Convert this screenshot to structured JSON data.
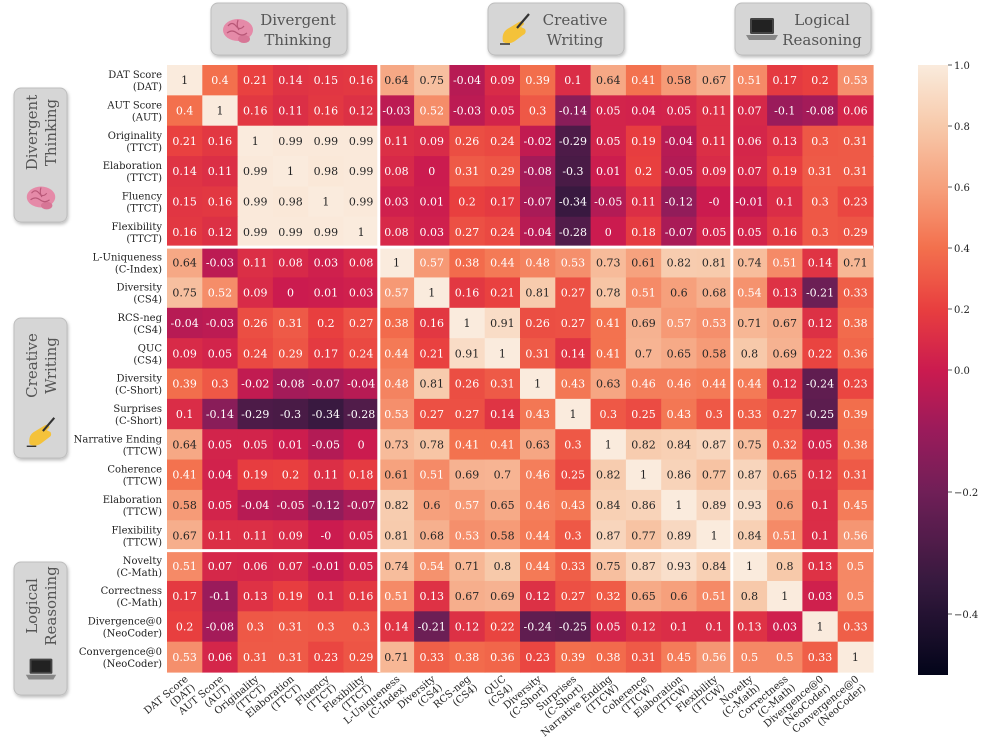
{
  "groups": {
    "top": [
      {
        "label": [
          "Divergent",
          "Thinking"
        ],
        "icon": "brain-icon"
      },
      {
        "label": [
          "Creative",
          "Writing"
        ],
        "icon": "writing-hand-icon"
      },
      {
        "label": [
          "Logical",
          "Reasoning"
        ],
        "icon": "laptop-icon"
      }
    ],
    "left": [
      {
        "label": [
          "Divergent",
          "Thinking"
        ],
        "icon": "brain-icon"
      },
      {
        "label": [
          "Creative",
          "Writing"
        ],
        "icon": "writing-hand-icon"
      },
      {
        "label": [
          "Logical",
          "Reasoning"
        ],
        "icon": "laptop-icon"
      }
    ]
  },
  "chart_data": {
    "type": "heatmap",
    "colormap": "rocket",
    "vmin": -0.5,
    "vcenter": 0,
    "vmax": 1,
    "colorbar_ticks": [
      {
        "value": 1.0,
        "label": "1.0"
      },
      {
        "value": 0.8,
        "label": "0.8"
      },
      {
        "value": 0.6,
        "label": "0.6"
      },
      {
        "value": 0.4,
        "label": "0.4"
      },
      {
        "value": 0.2,
        "label": "0.2"
      },
      {
        "value": 0.0,
        "label": "0.0"
      },
      {
        "value": -0.2,
        "label": "−0.2"
      },
      {
        "value": -0.4,
        "label": "−0.4"
      }
    ],
    "group_breaks": [
      6,
      16
    ],
    "labels": [
      [
        "DAT Score",
        "(DAT)"
      ],
      [
        "AUT Score",
        "(AUT)"
      ],
      [
        "Originality",
        "(TTCT)"
      ],
      [
        "Elaboration",
        "(TTCT)"
      ],
      [
        "Fluency",
        "(TTCT)"
      ],
      [
        "Flexibility",
        "(TTCT)"
      ],
      [
        "L-Uniqueness",
        "(C-Index)"
      ],
      [
        "Diversity",
        "(CS4)"
      ],
      [
        "RCS-neg",
        "(CS4)"
      ],
      [
        "QUC",
        "(CS4)"
      ],
      [
        "Diversity",
        "(C-Short)"
      ],
      [
        "Surprises",
        "(C-Short)"
      ],
      [
        "Narrative Ending",
        "(TTCW)"
      ],
      [
        "Coherence",
        "(TTCW)"
      ],
      [
        "Elaboration",
        "(TTCW)"
      ],
      [
        "Flexibility",
        "(TTCW)"
      ],
      [
        "Novelty",
        "(C-Math)"
      ],
      [
        "Correctness",
        "(C-Math)"
      ],
      [
        "Divergence@0",
        "(NeoCoder)"
      ],
      [
        "Convergence@0",
        "(NeoCoder)"
      ]
    ],
    "values": [
      [
        1,
        0.4,
        0.21,
        0.14,
        0.15,
        0.16,
        0.64,
        0.75,
        -0.04,
        0.09,
        0.39,
        0.1,
        0.64,
        0.41,
        0.58,
        0.67,
        0.51,
        0.17,
        0.2,
        0.53
      ],
      [
        0.4,
        1,
        0.16,
        0.11,
        0.16,
        0.12,
        -0.03,
        0.52,
        -0.03,
        0.05,
        0.3,
        -0.14,
        0.05,
        0.04,
        0.05,
        0.11,
        0.07,
        -0.1,
        -0.08,
        0.06
      ],
      [
        0.21,
        0.16,
        1,
        0.99,
        0.99,
        0.99,
        0.11,
        0.09,
        0.26,
        0.24,
        -0.02,
        -0.29,
        0.05,
        0.19,
        -0.04,
        0.11,
        0.06,
        0.13,
        0.3,
        0.31
      ],
      [
        0.14,
        0.11,
        0.99,
        1,
        0.98,
        0.99,
        0.08,
        0,
        0.31,
        0.29,
        -0.08,
        -0.3,
        0.01,
        0.2,
        -0.05,
        0.09,
        0.07,
        0.19,
        0.31,
        0.31
      ],
      [
        0.15,
        0.16,
        0.99,
        0.98,
        1,
        0.99,
        0.03,
        0.01,
        0.2,
        0.17,
        -0.07,
        -0.34,
        -0.05,
        0.11,
        -0.12,
        "-0",
        -0.01,
        0.1,
        0.3,
        0.23
      ],
      [
        0.16,
        0.12,
        0.99,
        0.99,
        0.99,
        1,
        0.08,
        0.03,
        0.27,
        0.24,
        -0.04,
        -0.28,
        0,
        0.18,
        -0.07,
        0.05,
        0.05,
        0.16,
        0.3,
        0.29
      ],
      [
        0.64,
        -0.03,
        0.11,
        0.08,
        0.03,
        0.08,
        1,
        0.57,
        0.38,
        0.44,
        0.48,
        0.53,
        0.73,
        0.61,
        0.82,
        0.81,
        0.74,
        0.51,
        0.14,
        0.71
      ],
      [
        0.75,
        0.52,
        0.09,
        0,
        0.01,
        0.03,
        0.57,
        1,
        0.16,
        0.21,
        0.81,
        0.27,
        0.78,
        0.51,
        0.6,
        0.68,
        0.54,
        0.13,
        -0.21,
        0.33
      ],
      [
        -0.04,
        -0.03,
        0.26,
        0.31,
        0.2,
        0.27,
        0.38,
        0.16,
        1,
        0.91,
        0.26,
        0.27,
        0.41,
        0.69,
        0.57,
        0.53,
        0.71,
        0.67,
        0.12,
        0.38
      ],
      [
        0.09,
        0.05,
        0.24,
        0.29,
        0.17,
        0.24,
        0.44,
        0.21,
        0.91,
        1,
        0.31,
        0.14,
        0.41,
        0.7,
        0.65,
        0.58,
        0.8,
        0.69,
        0.22,
        0.36
      ],
      [
        0.39,
        0.3,
        -0.02,
        -0.08,
        -0.07,
        -0.04,
        0.48,
        0.81,
        0.26,
        0.31,
        1,
        0.43,
        0.63,
        0.46,
        0.46,
        0.44,
        0.44,
        0.12,
        -0.24,
        0.23
      ],
      [
        0.1,
        -0.14,
        -0.29,
        -0.3,
        -0.34,
        -0.28,
        0.53,
        0.27,
        0.27,
        0.14,
        0.43,
        1,
        0.3,
        0.25,
        0.43,
        0.3,
        0.33,
        0.27,
        -0.25,
        0.39
      ],
      [
        0.64,
        0.05,
        0.05,
        0.01,
        -0.05,
        0,
        0.73,
        0.78,
        0.41,
        0.41,
        0.63,
        0.3,
        1,
        0.82,
        0.84,
        0.87,
        0.75,
        0.32,
        0.05,
        0.38
      ],
      [
        0.41,
        0.04,
        0.19,
        0.2,
        0.11,
        0.18,
        0.61,
        0.51,
        0.69,
        0.7,
        0.46,
        0.25,
        0.82,
        1,
        0.86,
        0.77,
        0.87,
        0.65,
        0.12,
        0.31
      ],
      [
        0.58,
        0.05,
        -0.04,
        -0.05,
        -0.12,
        -0.07,
        0.82,
        0.6,
        0.57,
        0.65,
        0.46,
        0.43,
        0.84,
        0.86,
        1,
        0.89,
        0.93,
        0.6,
        0.1,
        0.45
      ],
      [
        0.67,
        0.11,
        0.11,
        0.09,
        "-0",
        0.05,
        0.81,
        0.68,
        0.53,
        0.58,
        0.44,
        0.3,
        0.87,
        0.77,
        0.89,
        1,
        0.84,
        0.51,
        0.1,
        0.56
      ],
      [
        0.51,
        0.07,
        0.06,
        0.07,
        -0.01,
        0.05,
        0.74,
        0.54,
        0.71,
        0.8,
        0.44,
        0.33,
        0.75,
        0.87,
        0.93,
        0.84,
        1,
        0.8,
        0.13,
        0.5
      ],
      [
        0.17,
        -0.1,
        0.13,
        0.19,
        0.1,
        0.16,
        0.51,
        0.13,
        0.67,
        0.69,
        0.12,
        0.27,
        0.32,
        0.65,
        0.6,
        0.51,
        0.8,
        1,
        0.03,
        0.5
      ],
      [
        0.2,
        -0.08,
        0.3,
        0.31,
        0.3,
        0.3,
        0.14,
        -0.21,
        0.12,
        0.22,
        -0.24,
        -0.25,
        0.05,
        0.12,
        0.1,
        0.1,
        0.13,
        0.03,
        1,
        0.33
      ],
      [
        0.53,
        0.06,
        0.31,
        0.31,
        0.23,
        0.29,
        0.71,
        0.33,
        0.38,
        0.36,
        0.23,
        0.39,
        0.38,
        0.31,
        0.45,
        0.56,
        0.5,
        0.5,
        0.33,
        1
      ]
    ]
  }
}
